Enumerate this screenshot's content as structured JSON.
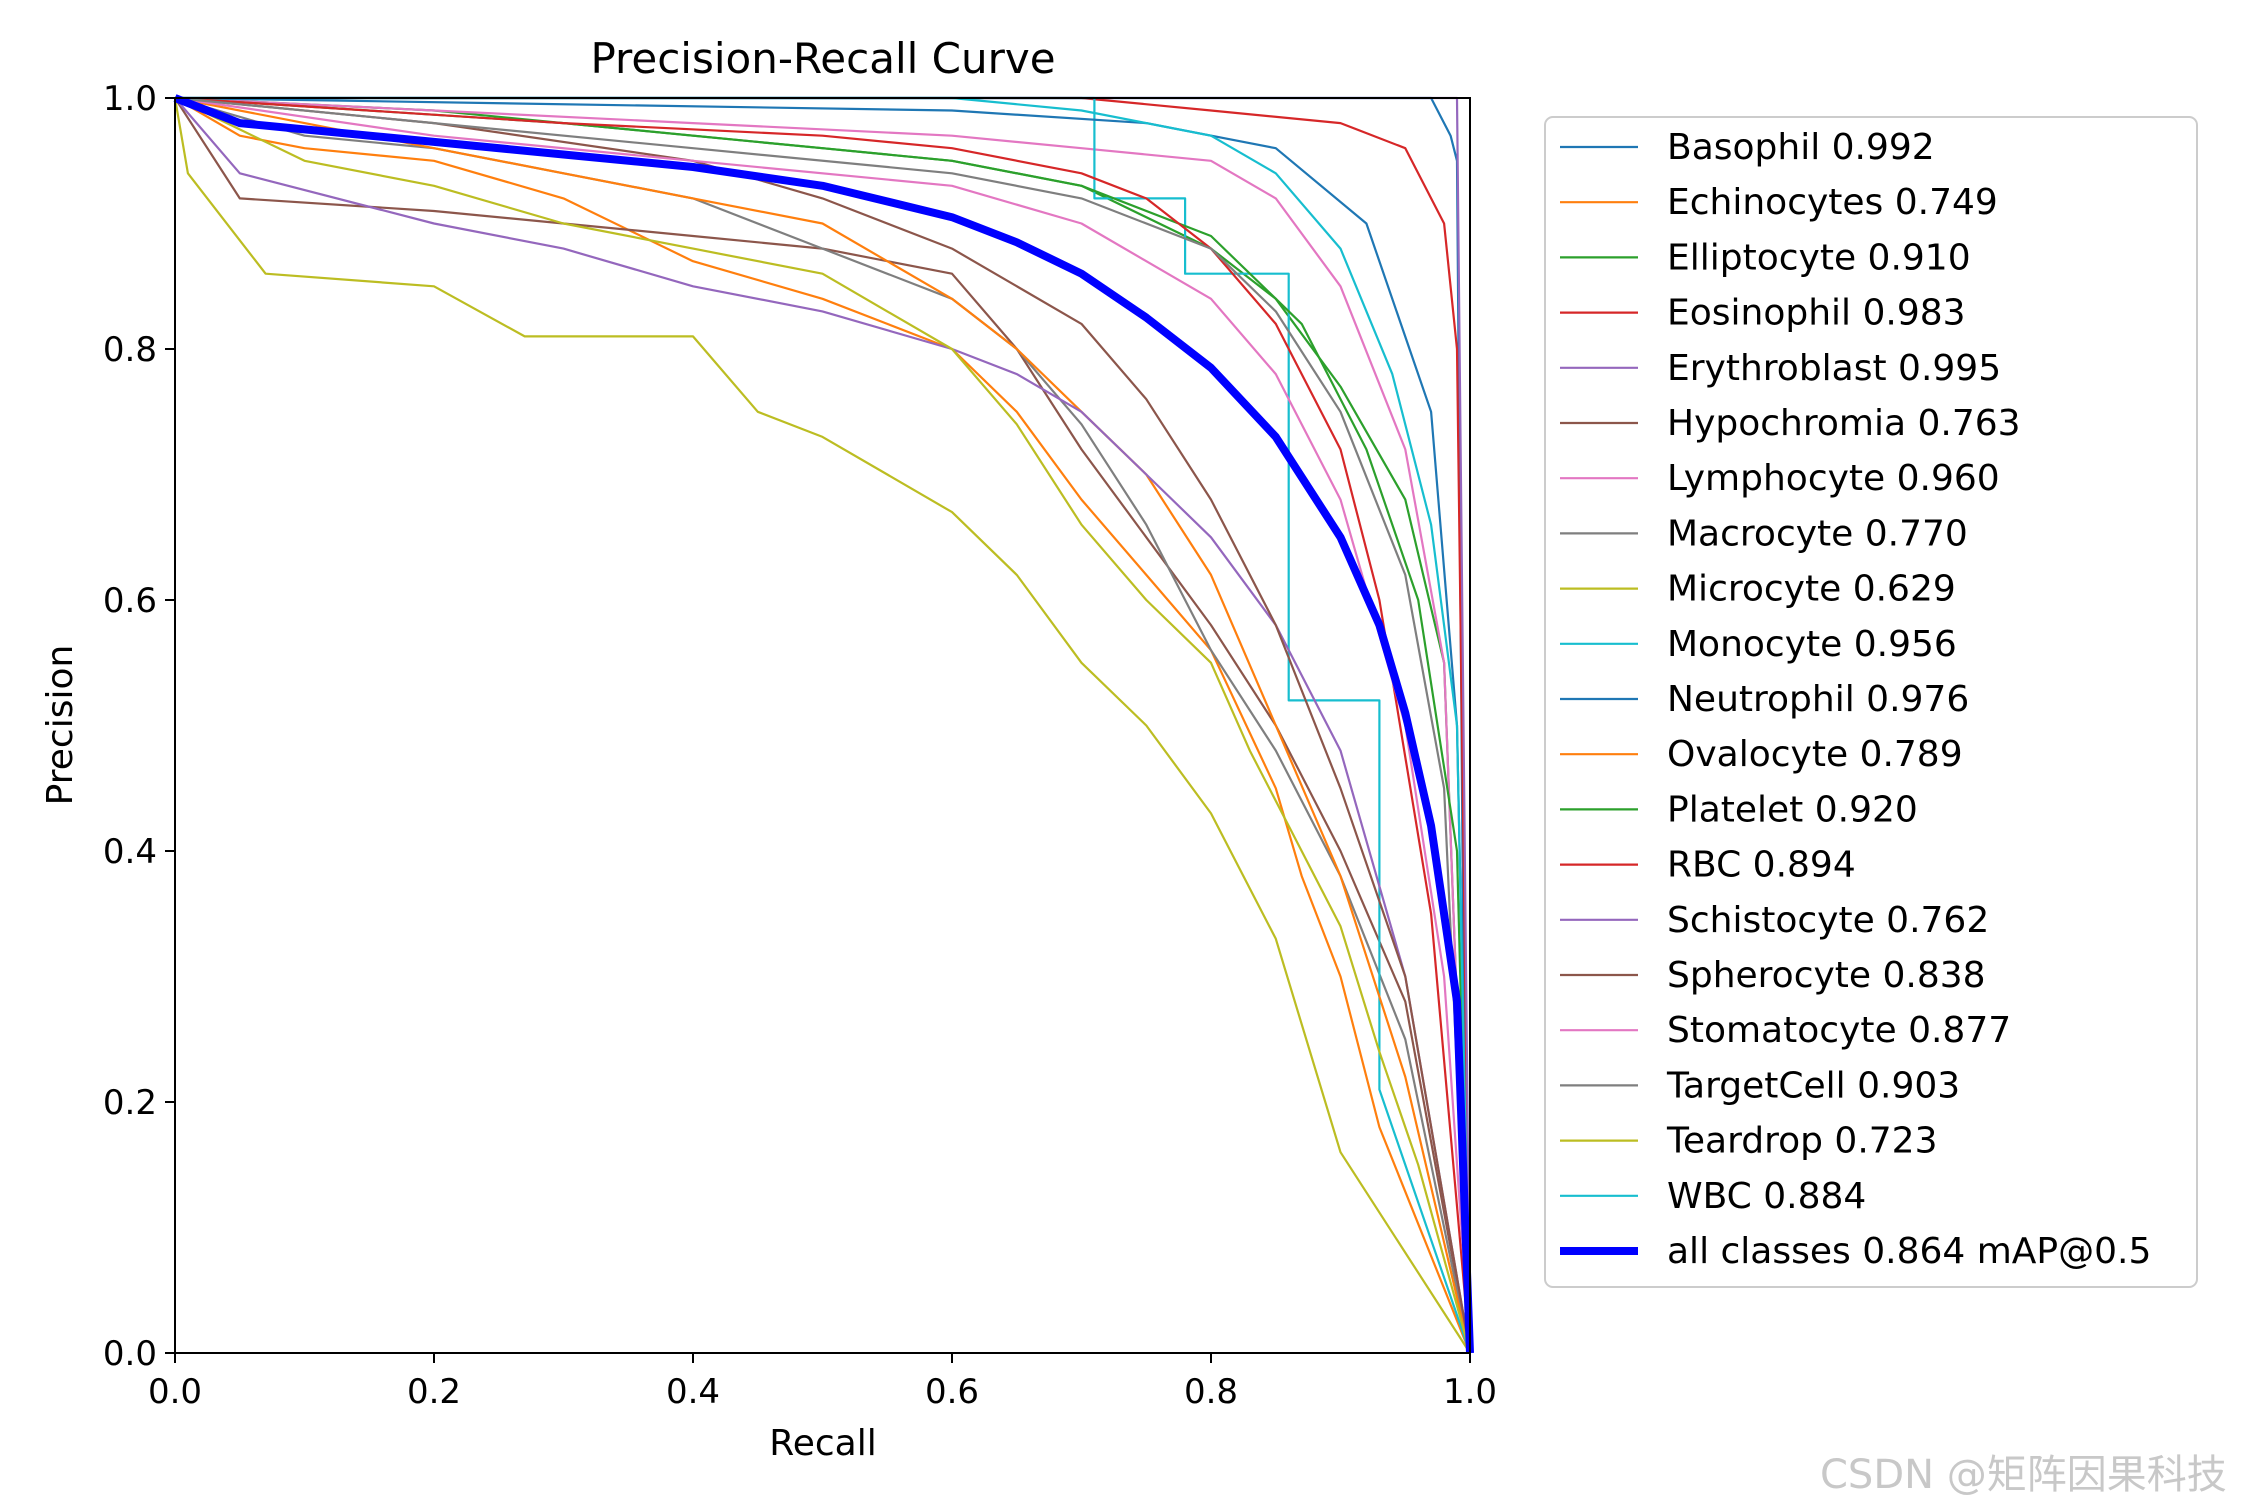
{
  "chart_data": {
    "type": "line",
    "title": "Precision-Recall Curve",
    "xlabel": "Recall",
    "ylabel": "Precision",
    "xlim": [
      0.0,
      1.0
    ],
    "ylim": [
      0.0,
      1.0
    ],
    "xticks": [
      "0.0",
      "0.2",
      "0.4",
      "0.6",
      "0.8",
      "1.0"
    ],
    "yticks": [
      "0.0",
      "0.2",
      "0.4",
      "0.6",
      "0.8",
      "1.0"
    ],
    "grid": false,
    "legend_position": "outside-right",
    "series": [
      {
        "name": "Basophil 0.992",
        "color": "#1f77b4",
        "x": [
          0,
          0.7,
          0.9,
          0.97,
          0.985,
          0.99,
          0.995,
          1.0
        ],
        "y": [
          1.0,
          1.0,
          1.0,
          1.0,
          0.97,
          0.95,
          0.3,
          0.0
        ]
      },
      {
        "name": "Echinocytes 0.749",
        "color": "#ff7f0e",
        "x": [
          0,
          0.05,
          0.1,
          0.2,
          0.3,
          0.4,
          0.5,
          0.55,
          0.6,
          0.65,
          0.7,
          0.75,
          0.8,
          0.85,
          0.87,
          0.9,
          0.93,
          1.0
        ],
        "y": [
          1.0,
          0.97,
          0.96,
          0.95,
          0.92,
          0.87,
          0.84,
          0.82,
          0.8,
          0.75,
          0.68,
          0.62,
          0.56,
          0.45,
          0.38,
          0.3,
          0.18,
          0.0
        ]
      },
      {
        "name": "Elliptocyte 0.910",
        "color": "#2ca02c",
        "x": [
          0,
          0.2,
          0.4,
          0.5,
          0.6,
          0.7,
          0.8,
          0.85,
          0.9,
          0.95,
          0.98,
          1.0
        ],
        "y": [
          1.0,
          0.99,
          0.97,
          0.96,
          0.95,
          0.93,
          0.88,
          0.84,
          0.77,
          0.68,
          0.55,
          0.0
        ]
      },
      {
        "name": "Eosinophil 0.983",
        "color": "#d62728",
        "x": [
          0,
          0.5,
          0.7,
          0.8,
          0.9,
          0.95,
          0.98,
          0.99,
          1.0
        ],
        "y": [
          1.0,
          1.0,
          1.0,
          0.99,
          0.98,
          0.96,
          0.9,
          0.8,
          0.0
        ]
      },
      {
        "name": "Erythroblast 0.995",
        "color": "#9467bd",
        "x": [
          0,
          0.9,
          0.99,
          1.0
        ],
        "y": [
          1.0,
          1.0,
          1.0,
          0.0
        ]
      },
      {
        "name": "Hypochromia 0.763",
        "color": "#8c564b",
        "x": [
          0,
          0.05,
          0.2,
          0.3,
          0.4,
          0.5,
          0.6,
          0.65,
          0.7,
          0.75,
          0.8,
          0.85,
          0.9,
          0.95,
          1.0
        ],
        "y": [
          1.0,
          0.92,
          0.91,
          0.9,
          0.89,
          0.88,
          0.86,
          0.8,
          0.72,
          0.65,
          0.58,
          0.5,
          0.4,
          0.28,
          0.0
        ]
      },
      {
        "name": "Lymphocyte 0.960",
        "color": "#e377c2",
        "x": [
          0,
          0.2,
          0.4,
          0.6,
          0.7,
          0.8,
          0.85,
          0.9,
          0.95,
          0.98,
          1.0
        ],
        "y": [
          1.0,
          0.99,
          0.98,
          0.97,
          0.96,
          0.95,
          0.92,
          0.85,
          0.72,
          0.55,
          0.0
        ]
      },
      {
        "name": "Macrocyte 0.770",
        "color": "#7f7f7f",
        "x": [
          0,
          0.1,
          0.2,
          0.3,
          0.4,
          0.5,
          0.6,
          0.65,
          0.7,
          0.75,
          0.8,
          0.85,
          0.9,
          0.95,
          1.0
        ],
        "y": [
          1.0,
          0.97,
          0.96,
          0.94,
          0.92,
          0.88,
          0.84,
          0.8,
          0.74,
          0.66,
          0.56,
          0.48,
          0.38,
          0.25,
          0.0
        ]
      },
      {
        "name": "Microcyte 0.629",
        "color": "#bcbd22",
        "x": [
          0,
          0.01,
          0.07,
          0.2,
          0.27,
          0.4,
          0.45,
          0.5,
          0.55,
          0.6,
          0.65,
          0.7,
          0.75,
          0.8,
          0.85,
          0.9,
          1.0
        ],
        "y": [
          1.0,
          0.94,
          0.86,
          0.85,
          0.81,
          0.81,
          0.75,
          0.73,
          0.7,
          0.67,
          0.62,
          0.55,
          0.5,
          0.43,
          0.33,
          0.16,
          0.0
        ]
      },
      {
        "name": "Monocyte 0.956",
        "color": "#17becf",
        "x": [
          0,
          0.71,
          0.71,
          0.78,
          0.78,
          0.86,
          0.86,
          0.93,
          0.93,
          1.0
        ],
        "y": [
          1.0,
          1.0,
          0.92,
          0.92,
          0.86,
          0.86,
          0.52,
          0.52,
          0.21,
          0.0
        ]
      },
      {
        "name": "Neutrophil 0.976",
        "color": "#1f77b4",
        "x": [
          0,
          0.6,
          0.75,
          0.85,
          0.92,
          0.97,
          0.99,
          1.0
        ],
        "y": [
          1.0,
          0.99,
          0.98,
          0.96,
          0.9,
          0.75,
          0.5,
          0.0
        ]
      },
      {
        "name": "Ovalocyte 0.789",
        "color": "#ff7f0e",
        "x": [
          0,
          0.1,
          0.2,
          0.3,
          0.4,
          0.5,
          0.55,
          0.6,
          0.65,
          0.7,
          0.75,
          0.8,
          0.85,
          0.9,
          0.95,
          1.0
        ],
        "y": [
          1.0,
          0.98,
          0.96,
          0.94,
          0.92,
          0.9,
          0.87,
          0.84,
          0.8,
          0.75,
          0.7,
          0.62,
          0.5,
          0.38,
          0.22,
          0.0
        ]
      },
      {
        "name": "Platelet 0.920",
        "color": "#2ca02c",
        "x": [
          0,
          0.3,
          0.5,
          0.6,
          0.7,
          0.8,
          0.87,
          0.92,
          0.96,
          0.99,
          1.0
        ],
        "y": [
          1.0,
          0.98,
          0.96,
          0.95,
          0.93,
          0.89,
          0.82,
          0.72,
          0.6,
          0.4,
          0.0
        ]
      },
      {
        "name": "RBC 0.894",
        "color": "#d62728",
        "x": [
          0,
          0.3,
          0.5,
          0.6,
          0.7,
          0.75,
          0.8,
          0.85,
          0.9,
          0.93,
          0.97,
          1.0
        ],
        "y": [
          1.0,
          0.98,
          0.97,
          0.96,
          0.94,
          0.92,
          0.88,
          0.82,
          0.72,
          0.6,
          0.35,
          0.0
        ]
      },
      {
        "name": "Schistocyte 0.762",
        "color": "#9467bd",
        "x": [
          0,
          0.05,
          0.2,
          0.3,
          0.4,
          0.5,
          0.6,
          0.65,
          0.7,
          0.75,
          0.8,
          0.85,
          0.9,
          0.95,
          1.0
        ],
        "y": [
          1.0,
          0.94,
          0.9,
          0.88,
          0.85,
          0.83,
          0.8,
          0.78,
          0.75,
          0.7,
          0.65,
          0.58,
          0.48,
          0.3,
          0.0
        ]
      },
      {
        "name": "Spherocyte 0.838",
        "color": "#8c564b",
        "x": [
          0,
          0.2,
          0.4,
          0.5,
          0.6,
          0.7,
          0.75,
          0.8,
          0.85,
          0.9,
          0.95,
          1.0
        ],
        "y": [
          1.0,
          0.98,
          0.95,
          0.92,
          0.88,
          0.82,
          0.76,
          0.68,
          0.58,
          0.45,
          0.3,
          0.0
        ]
      },
      {
        "name": "Stomatocyte 0.877",
        "color": "#e377c2",
        "x": [
          0,
          0.2,
          0.4,
          0.6,
          0.7,
          0.75,
          0.8,
          0.85,
          0.9,
          0.95,
          0.98,
          1.0
        ],
        "y": [
          1.0,
          0.97,
          0.95,
          0.93,
          0.9,
          0.87,
          0.84,
          0.78,
          0.68,
          0.5,
          0.3,
          0.0
        ]
      },
      {
        "name": "TargetCell 0.903",
        "color": "#7f7f7f",
        "x": [
          0,
          0.2,
          0.4,
          0.6,
          0.7,
          0.8,
          0.85,
          0.9,
          0.95,
          0.98,
          1.0
        ],
        "y": [
          1.0,
          0.98,
          0.96,
          0.94,
          0.92,
          0.88,
          0.83,
          0.75,
          0.62,
          0.45,
          0.0
        ]
      },
      {
        "name": "Teardrop 0.723",
        "color": "#bcbd22",
        "x": [
          0,
          0.1,
          0.2,
          0.3,
          0.4,
          0.5,
          0.55,
          0.6,
          0.65,
          0.7,
          0.75,
          0.8,
          0.83,
          0.86,
          0.9,
          0.93,
          0.96,
          1.0
        ],
        "y": [
          1.0,
          0.95,
          0.93,
          0.9,
          0.88,
          0.86,
          0.83,
          0.8,
          0.74,
          0.66,
          0.6,
          0.55,
          0.48,
          0.42,
          0.34,
          0.24,
          0.15,
          0.0
        ]
      },
      {
        "name": "WBC 0.884",
        "color": "#17becf",
        "x": [
          0,
          0.4,
          0.6,
          0.7,
          0.75,
          0.8,
          0.85,
          0.9,
          0.94,
          0.97,
          0.99,
          1.0
        ],
        "y": [
          1.0,
          1.0,
          1.0,
          0.99,
          0.98,
          0.97,
          0.94,
          0.88,
          0.78,
          0.66,
          0.5,
          0.0
        ]
      },
      {
        "name": "all classes 0.864 mAP@0.5",
        "color": "#0000ff",
        "thick": true,
        "x": [
          0,
          0.05,
          0.1,
          0.2,
          0.3,
          0.4,
          0.5,
          0.6,
          0.65,
          0.7,
          0.75,
          0.8,
          0.85,
          0.9,
          0.93,
          0.95,
          0.97,
          0.99,
          1.0
        ],
        "y": [
          1.0,
          0.98,
          0.975,
          0.965,
          0.955,
          0.945,
          0.93,
          0.905,
          0.885,
          0.86,
          0.825,
          0.785,
          0.73,
          0.65,
          0.58,
          0.51,
          0.42,
          0.28,
          0.0
        ]
      }
    ]
  },
  "watermark": "CSDN @矩阵因果科技"
}
